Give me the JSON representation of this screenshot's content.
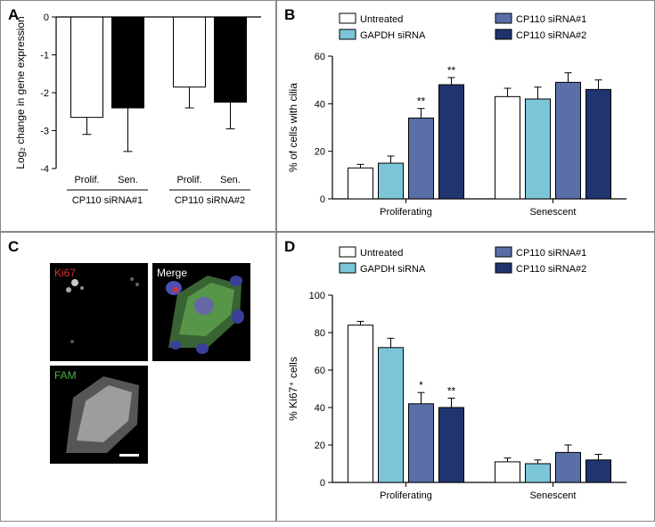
{
  "panels": {
    "A": "A",
    "B": "B",
    "C": "C",
    "D": "D"
  },
  "panelA": {
    "type": "bar",
    "y_axis_title": "Log₂ change in gene expression",
    "ylim": [
      -4,
      0
    ],
    "yticks": [
      0,
      -1,
      -2,
      -3,
      -4
    ],
    "groups": [
      "CP110 siRNA#1",
      "CP110 siRNA#2"
    ],
    "sub_labels": [
      "Prolif.",
      "Sen.",
      "Prolif.",
      "Sen."
    ],
    "bars": [
      {
        "value": -2.65,
        "err": 0.45,
        "fill": "#ffffff"
      },
      {
        "value": -2.4,
        "err": 1.15,
        "fill": "#000000"
      },
      {
        "value": -1.85,
        "err": 0.55,
        "fill": "#ffffff"
      },
      {
        "value": -2.25,
        "err": 0.7,
        "fill": "#000000"
      }
    ]
  },
  "panelB": {
    "type": "bar",
    "y_axis_title": "% of cells with cilia",
    "ylim": [
      0,
      60
    ],
    "yticks": [
      0,
      20,
      40,
      60
    ],
    "group_labels": [
      "Proliferating",
      "Senescent"
    ],
    "legend": [
      {
        "label": "Untreated",
        "fill": "#ffffff"
      },
      {
        "label": "GAPDH siRNA",
        "fill": "#7cc5d8"
      },
      {
        "label": "CP110 siRNA#1",
        "fill": "#5a6fa8"
      },
      {
        "label": "CP110 siRNA#2",
        "fill": "#20356f"
      }
    ],
    "groups": [
      {
        "bars": [
          {
            "value": 13,
            "err": 1.5,
            "fill": "#ffffff",
            "sig": ""
          },
          {
            "value": 15,
            "err": 3,
            "fill": "#7cc5d8",
            "sig": ""
          },
          {
            "value": 34,
            "err": 4,
            "fill": "#5a6fa8",
            "sig": "**"
          },
          {
            "value": 48,
            "err": 3,
            "fill": "#20356f",
            "sig": "**"
          }
        ]
      },
      {
        "bars": [
          {
            "value": 43,
            "err": 3.5,
            "fill": "#ffffff",
            "sig": ""
          },
          {
            "value": 42,
            "err": 5,
            "fill": "#7cc5d8",
            "sig": ""
          },
          {
            "value": 49,
            "err": 4,
            "fill": "#5a6fa8",
            "sig": ""
          },
          {
            "value": 46,
            "err": 4,
            "fill": "#20356f",
            "sig": ""
          }
        ]
      }
    ]
  },
  "panelC": {
    "images": [
      {
        "label": "Ki67",
        "color": "#d8302f"
      },
      {
        "label": "Merge",
        "color": "#ffffff"
      },
      {
        "label": "FAM",
        "color": "#4fae47"
      }
    ]
  },
  "panelD": {
    "type": "bar",
    "y_axis_title": "% Ki67⁺ cells",
    "ylim": [
      0,
      100
    ],
    "yticks": [
      0,
      20,
      40,
      60,
      80,
      100
    ],
    "group_labels": [
      "Proliferating",
      "Senescent"
    ],
    "legend": [
      {
        "label": "Untreated",
        "fill": "#ffffff"
      },
      {
        "label": "GAPDH siRNA",
        "fill": "#7cc5d8"
      },
      {
        "label": "CP110 siRNA#1",
        "fill": "#5a6fa8"
      },
      {
        "label": "CP110 siRNA#2",
        "fill": "#20356f"
      }
    ],
    "groups": [
      {
        "bars": [
          {
            "value": 84,
            "err": 2,
            "fill": "#ffffff",
            "sig": ""
          },
          {
            "value": 72,
            "err": 5,
            "fill": "#7cc5d8",
            "sig": ""
          },
          {
            "value": 42,
            "err": 6,
            "fill": "#5a6fa8",
            "sig": "*"
          },
          {
            "value": 40,
            "err": 5,
            "fill": "#20356f",
            "sig": "**"
          }
        ]
      },
      {
        "bars": [
          {
            "value": 11,
            "err": 2,
            "fill": "#ffffff",
            "sig": ""
          },
          {
            "value": 10,
            "err": 2,
            "fill": "#7cc5d8",
            "sig": ""
          },
          {
            "value": 16,
            "err": 4,
            "fill": "#5a6fa8",
            "sig": ""
          },
          {
            "value": 12,
            "err": 3,
            "fill": "#20356f",
            "sig": ""
          }
        ]
      }
    ]
  }
}
